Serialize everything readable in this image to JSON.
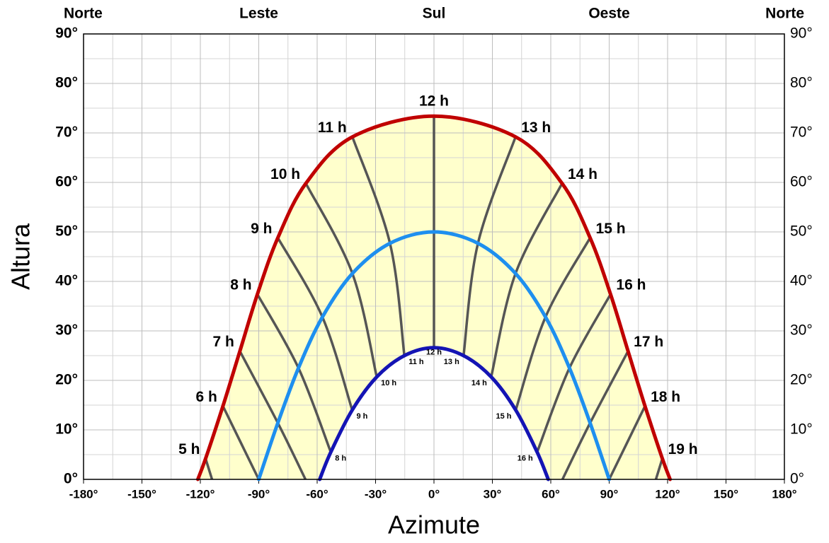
{
  "chart_data": {
    "type": "sunpath",
    "xlabel": "Azimute",
    "ylabel": "Altura",
    "xlim": [
      -180,
      180
    ],
    "ylim": [
      0,
      90
    ],
    "xticks": [
      {
        "value": -180,
        "label": "-180°"
      },
      {
        "value": -150,
        "label": "-150°"
      },
      {
        "value": -120,
        "label": "-120°"
      },
      {
        "value": -90,
        "label": "-90°"
      },
      {
        "value": -60,
        "label": "-60°"
      },
      {
        "value": -30,
        "label": "-30°"
      },
      {
        "value": 0,
        "label": "0°"
      },
      {
        "value": 30,
        "label": "30°"
      },
      {
        "value": 60,
        "label": "60°"
      },
      {
        "value": 90,
        "label": "90°"
      },
      {
        "value": 120,
        "label": "120°"
      },
      {
        "value": 150,
        "label": "150°"
      },
      {
        "value": 180,
        "label": "180°"
      }
    ],
    "yticks": [
      {
        "value": 0,
        "label": "0°"
      },
      {
        "value": 10,
        "label": "10°"
      },
      {
        "value": 20,
        "label": "20°"
      },
      {
        "value": 30,
        "label": "30°"
      },
      {
        "value": 40,
        "label": "40°"
      },
      {
        "value": 50,
        "label": "50°"
      },
      {
        "value": 60,
        "label": "60°"
      },
      {
        "value": 70,
        "label": "70°"
      },
      {
        "value": 80,
        "label": "80°"
      },
      {
        "value": 90,
        "label": "90°"
      }
    ],
    "top_ticks": [
      {
        "value": -180,
        "label": "Norte"
      },
      {
        "value": -90,
        "label": "Leste"
      },
      {
        "value": 0,
        "label": "Sul"
      },
      {
        "value": 90,
        "label": "Oeste"
      },
      {
        "value": 180,
        "label": "Norte"
      }
    ],
    "grid": true,
    "minor_grid": true,
    "fill_color": "#ffffcc",
    "hour_line_color": "#555555",
    "series": [
      {
        "color": "#c00000",
        "x": [
          -121.3,
          -117.3,
          -108.4,
          -99.7,
          -90.7,
          -80.2,
          -65.8,
          -41.9,
          0,
          41.9,
          65.8,
          80.2,
          90.7,
          99.7,
          108.4,
          117.3,
          121.3
        ],
        "values": [
          0,
          4.2,
          14.8,
          25.9,
          37.4,
          48.8,
          59.8,
          69.2,
          73.4,
          69.2,
          59.8,
          48.8,
          37.4,
          25.9,
          14.8,
          4.2,
          0
        ],
        "hour_labels": [
          null,
          "5 h",
          "6 h",
          "7 h",
          "8 h",
          "9 h",
          "10 h",
          "11 h",
          "12 h",
          "13 h",
          "14 h",
          "15 h",
          "16 h",
          "17 h",
          "18 h",
          "19 h",
          null
        ]
      },
      {
        "color": "#1e8fef",
        "x": [
          -90,
          -80.2,
          -69.6,
          -57.3,
          -41.9,
          -22.6,
          0,
          22.6,
          41.9,
          57.3,
          69.6,
          80.2,
          90
        ],
        "values": [
          0,
          11.4,
          22.5,
          32.8,
          41.6,
          47.7,
          50,
          47.7,
          41.6,
          32.8,
          22.5,
          11.4,
          0
        ]
      },
      {
        "color": "#1414b4",
        "x": [
          -58.7,
          -53,
          -42,
          -29.4,
          -15.2,
          0,
          15.2,
          29.4,
          42,
          53,
          58.7
        ],
        "values": [
          0,
          5.5,
          14,
          20.7,
          25,
          26.6,
          25,
          20.7,
          14,
          5.5,
          0
        ],
        "hour_labels": [
          null,
          "8 h",
          "9 h",
          "10 h",
          "11 h",
          "12 h",
          "13 h",
          "14 h",
          "15 h",
          "16 h",
          null
        ]
      }
    ],
    "hour_lines": [
      {
        "x": [
          -117.3,
          -114
        ],
        "values": [
          4.2,
          0
        ]
      },
      {
        "x": [
          -108.4,
          -90
        ],
        "values": [
          14.8,
          0
        ]
      },
      {
        "x": [
          -99.7,
          -80.2,
          -66
        ],
        "values": [
          25.9,
          11.4,
          0
        ]
      },
      {
        "x": [
          -90.7,
          -69.6,
          -53
        ],
        "values": [
          37.4,
          22.5,
          5.5
        ]
      },
      {
        "x": [
          -80.2,
          -57.3,
          -42
        ],
        "values": [
          48.8,
          32.8,
          14
        ]
      },
      {
        "x": [
          -65.8,
          -41.9,
          -29.4
        ],
        "values": [
          59.8,
          41.6,
          20.7
        ]
      },
      {
        "x": [
          -41.9,
          -22.6,
          -15.2
        ],
        "values": [
          69.2,
          47.7,
          25
        ]
      },
      {
        "x": [
          0,
          0,
          0
        ],
        "values": [
          73.4,
          50,
          26.6
        ]
      },
      {
        "x": [
          41.9,
          22.6,
          15.2
        ],
        "values": [
          69.2,
          47.7,
          25
        ]
      },
      {
        "x": [
          65.8,
          41.9,
          29.4
        ],
        "values": [
          59.8,
          41.6,
          20.7
        ]
      },
      {
        "x": [
          80.2,
          57.3,
          42
        ],
        "values": [
          48.8,
          32.8,
          14
        ]
      },
      {
        "x": [
          90.7,
          69.6,
          53
        ],
        "values": [
          37.4,
          22.5,
          5.5
        ]
      },
      {
        "x": [
          99.7,
          80.2,
          66
        ],
        "values": [
          25.9,
          11.4,
          0
        ]
      },
      {
        "x": [
          108.4,
          90
        ],
        "values": [
          14.8,
          0
        ]
      },
      {
        "x": [
          117.3,
          114
        ],
        "values": [
          4.2,
          0
        ]
      }
    ]
  }
}
